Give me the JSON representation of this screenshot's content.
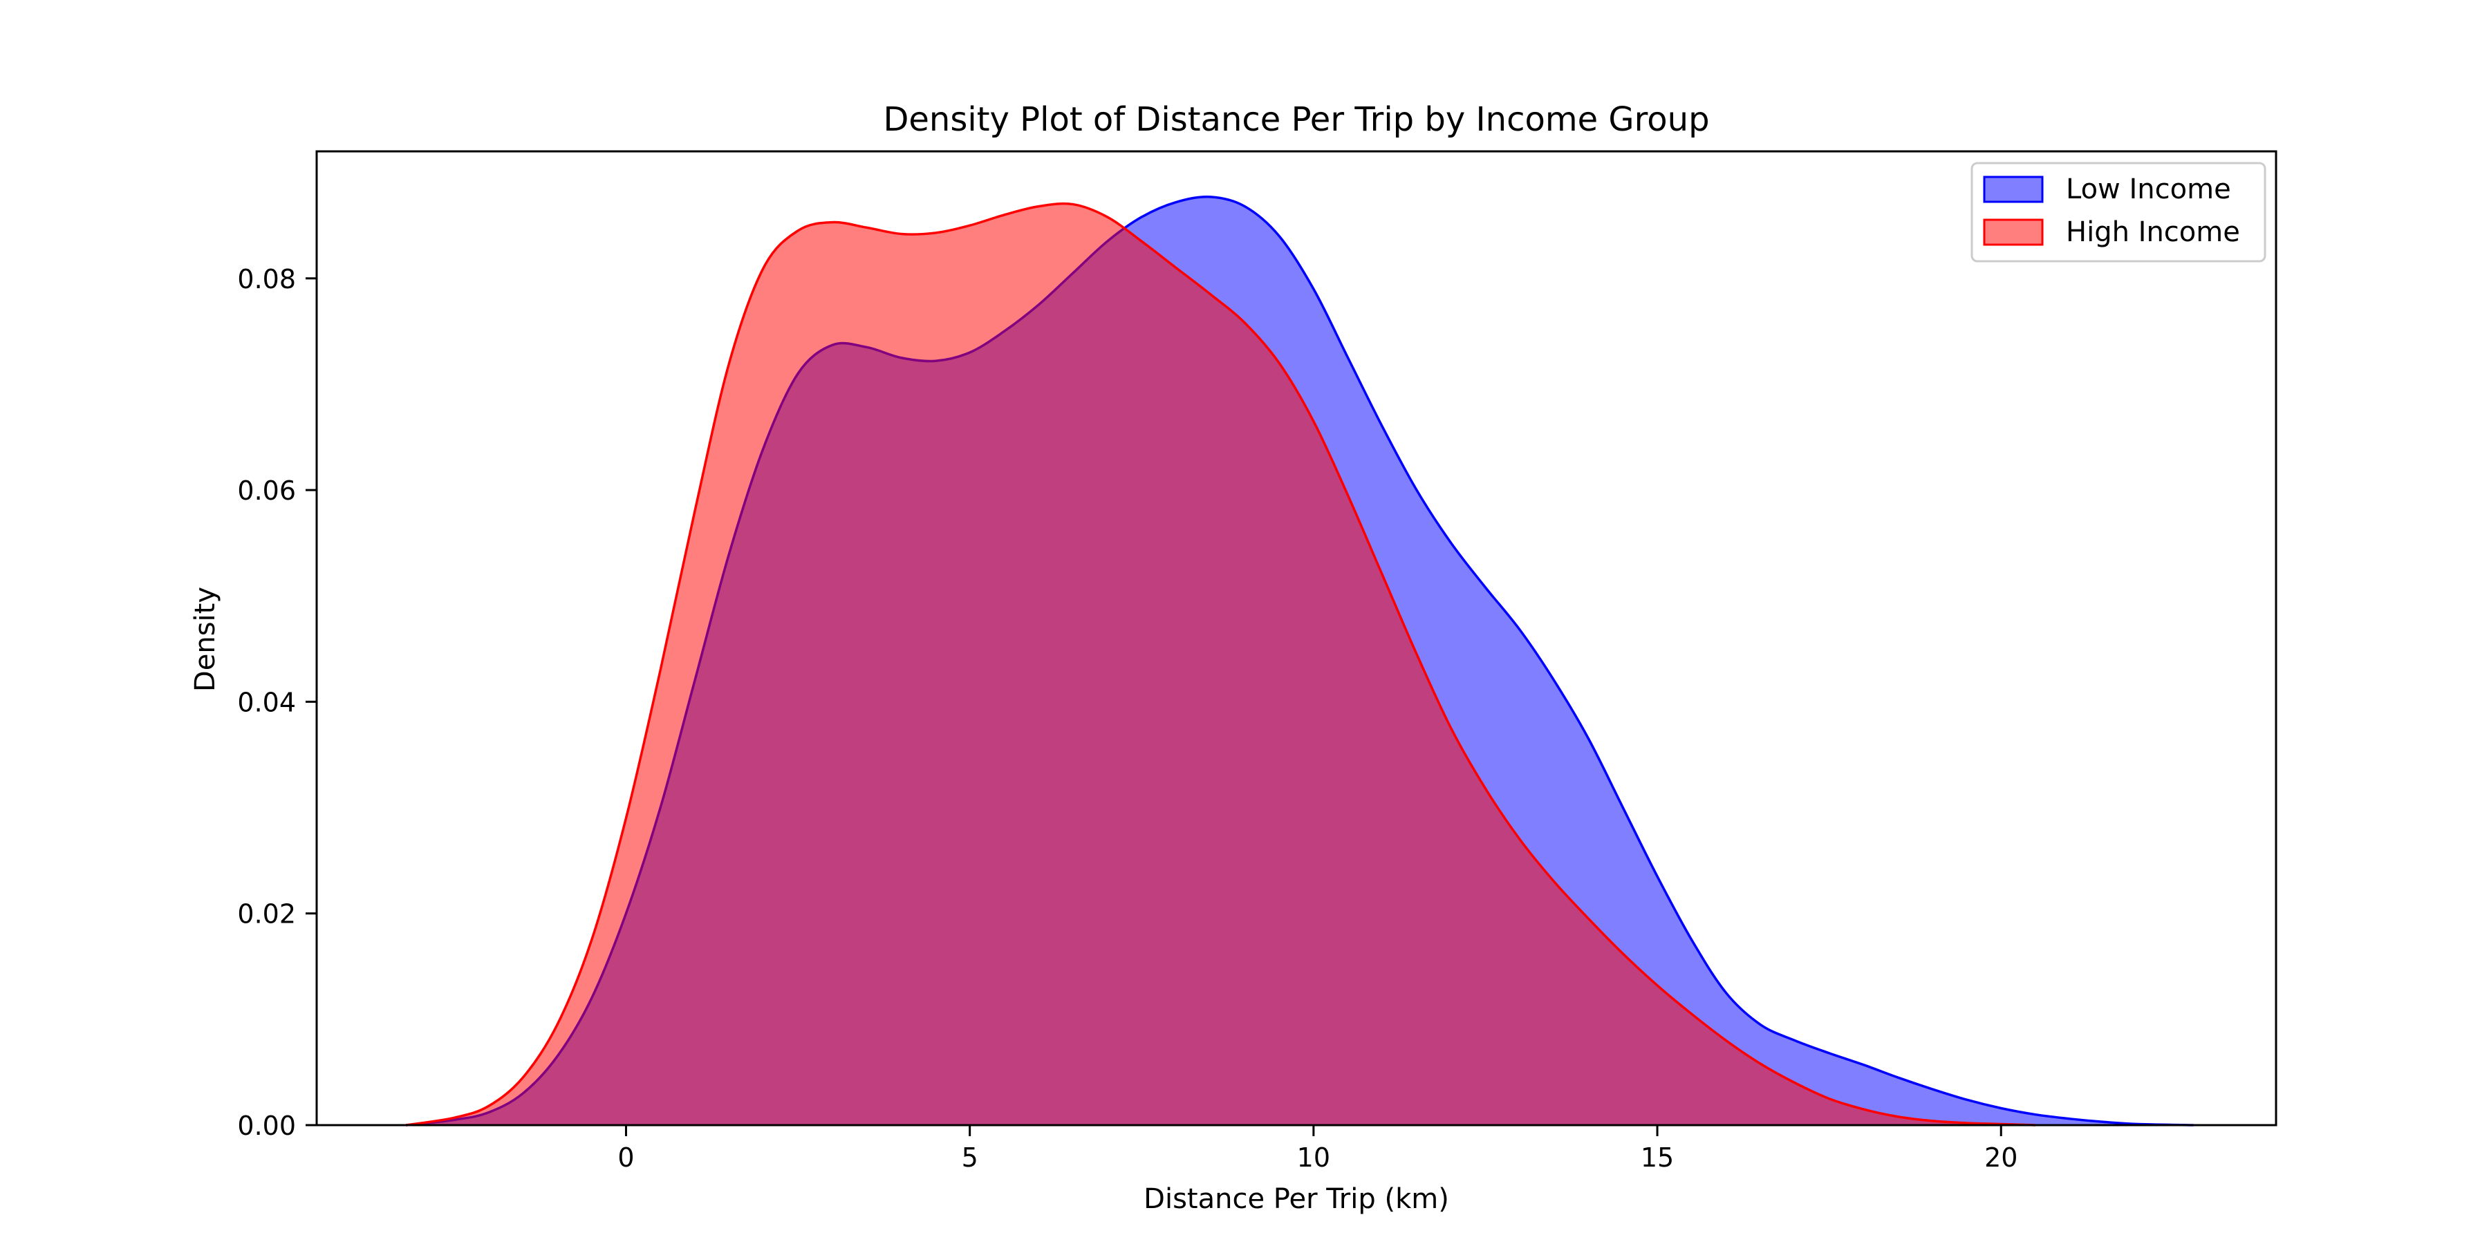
{
  "chart_data": {
    "type": "area",
    "title": "Density Plot of Distance Per Trip by Income Group",
    "xlabel": "Distance Per Trip (km)",
    "ylabel": "Density",
    "xlim": [
      -4.5,
      24.0
    ],
    "ylim": [
      0.0,
      0.092
    ],
    "xticks": [
      0,
      5,
      10,
      15,
      20
    ],
    "yticks": [
      0.0,
      0.02,
      0.04,
      0.06,
      0.08
    ],
    "ytick_labels": [
      "0.00",
      "0.02",
      "0.04",
      "0.06",
      "0.08"
    ],
    "grid": false,
    "legend_position": "top-right",
    "series": [
      {
        "name": "Low Income",
        "color": "#0000ff",
        "fill": "#8080ff",
        "points": [
          [
            -3.2,
            0.0
          ],
          [
            -2.5,
            0.0005
          ],
          [
            -2,
            0.0012
          ],
          [
            -1.5,
            0.003
          ],
          [
            -1,
            0.0065
          ],
          [
            -0.5,
            0.012
          ],
          [
            0,
            0.02
          ],
          [
            0.5,
            0.03
          ],
          [
            1,
            0.042
          ],
          [
            1.5,
            0.054
          ],
          [
            2,
            0.064
          ],
          [
            2.5,
            0.071
          ],
          [
            3,
            0.0737
          ],
          [
            3.5,
            0.0735
          ],
          [
            4,
            0.0725
          ],
          [
            4.5,
            0.0722
          ],
          [
            5,
            0.073
          ],
          [
            5.5,
            0.075
          ],
          [
            6,
            0.0775
          ],
          [
            6.5,
            0.0805
          ],
          [
            7,
            0.0835
          ],
          [
            7.5,
            0.0858
          ],
          [
            8,
            0.0872
          ],
          [
            8.5,
            0.0877
          ],
          [
            9,
            0.0868
          ],
          [
            9.5,
            0.084
          ],
          [
            10,
            0.079
          ],
          [
            10.5,
            0.0725
          ],
          [
            11,
            0.066
          ],
          [
            11.5,
            0.06
          ],
          [
            12,
            0.055
          ],
          [
            12.5,
            0.0508
          ],
          [
            13,
            0.0468
          ],
          [
            13.5,
            0.042
          ],
          [
            14,
            0.0365
          ],
          [
            14.5,
            0.03
          ],
          [
            15,
            0.0235
          ],
          [
            15.5,
            0.0175
          ],
          [
            16,
            0.0125
          ],
          [
            16.5,
            0.0095
          ],
          [
            17,
            0.008
          ],
          [
            17.5,
            0.0068
          ],
          [
            18,
            0.0057
          ],
          [
            18.5,
            0.0045
          ],
          [
            19,
            0.0034
          ],
          [
            19.5,
            0.0024
          ],
          [
            20,
            0.0016
          ],
          [
            20.5,
            0.001
          ],
          [
            21,
            0.0006
          ],
          [
            21.5,
            0.0003
          ],
          [
            22,
            0.0001
          ],
          [
            22.8,
            0.0
          ]
        ]
      },
      {
        "name": "High Income",
        "color": "#ff0000",
        "fill": "#ff8080",
        "points": [
          [
            -3.2,
            0.0
          ],
          [
            -2.5,
            0.0007
          ],
          [
            -2,
            0.0018
          ],
          [
            -1.5,
            0.0045
          ],
          [
            -1,
            0.0095
          ],
          [
            -0.5,
            0.0175
          ],
          [
            0,
            0.029
          ],
          [
            0.5,
            0.043
          ],
          [
            1,
            0.058
          ],
          [
            1.5,
            0.072
          ],
          [
            2,
            0.081
          ],
          [
            2.5,
            0.0845
          ],
          [
            3,
            0.0853
          ],
          [
            3.5,
            0.0848
          ],
          [
            4,
            0.0842
          ],
          [
            4.5,
            0.0843
          ],
          [
            5,
            0.085
          ],
          [
            5.5,
            0.086
          ],
          [
            6,
            0.0868
          ],
          [
            6.5,
            0.087
          ],
          [
            7,
            0.0858
          ],
          [
            7.5,
            0.0835
          ],
          [
            8,
            0.081
          ],
          [
            8.5,
            0.0785
          ],
          [
            9,
            0.0758
          ],
          [
            9.5,
            0.072
          ],
          [
            10,
            0.0665
          ],
          [
            10.5,
            0.0595
          ],
          [
            11,
            0.052
          ],
          [
            11.5,
            0.0445
          ],
          [
            12,
            0.0375
          ],
          [
            12.5,
            0.0318
          ],
          [
            13,
            0.027
          ],
          [
            13.5,
            0.023
          ],
          [
            14,
            0.0195
          ],
          [
            14.5,
            0.0162
          ],
          [
            15,
            0.0132
          ],
          [
            15.5,
            0.0105
          ],
          [
            16,
            0.008
          ],
          [
            16.5,
            0.0058
          ],
          [
            17,
            0.004
          ],
          [
            17.5,
            0.0025
          ],
          [
            18,
            0.0015
          ],
          [
            18.5,
            0.0008
          ],
          [
            19,
            0.0004
          ],
          [
            19.5,
            0.0002
          ],
          [
            20,
            0.0001
          ],
          [
            20.5,
            0.0
          ]
        ]
      }
    ]
  }
}
